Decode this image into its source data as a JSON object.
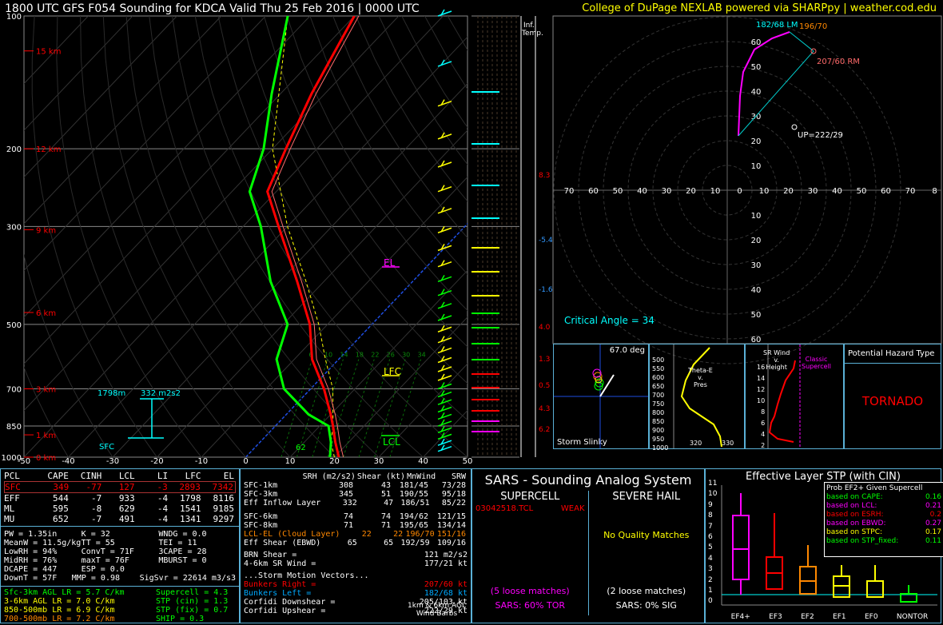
{
  "header": {
    "title": "1800 UTC GFS F054 Sounding for KDCA Valid  Thu 25 Feb 2016 | 0000 UTC",
    "credit": "College of DuPage NEXLAB powered via SHARPpy | weather.cod.edu"
  },
  "skewt": {
    "pressure_ticks": [
      "100",
      "200",
      "300",
      "500",
      "700",
      "850",
      "1000"
    ],
    "height_labels": [
      "15 km",
      "12 km",
      "9 km",
      "6 km",
      "3 km",
      "1 km",
      "0 km"
    ],
    "temp_ticks": [
      "-50",
      "-40",
      "-30",
      "-20",
      "-10",
      "0",
      "10",
      "20",
      "30",
      "40",
      "50"
    ],
    "el_label": "EL",
    "lfc_label": "LFC",
    "lcl_label": "LCL",
    "sfc_label": "SFC",
    "ehi_label": "1798m",
    "srh_label": "332 m2s2",
    "sfc_value": "62",
    "mixing_ratios": [
      "6",
      "10",
      "14",
      "18",
      "22",
      "26",
      "30",
      "34"
    ],
    "inf_temp_label": "Inf.\nTemp.",
    "inf_values": [
      "8.3",
      "-5.4",
      "-1.6",
      "4.0",
      "1.3",
      "0.5",
      "4.3",
      "6.2"
    ]
  },
  "hodograph": {
    "rings": [
      "10",
      "20",
      "30",
      "40",
      "50",
      "60"
    ],
    "axis_labels": [
      "70",
      "60",
      "50",
      "40",
      "30",
      "20",
      "10",
      "0",
      "10",
      "20",
      "30",
      "40",
      "50",
      "60",
      "70",
      "8"
    ],
    "top_left_label": "182/68 LM",
    "top_right_label": "196/70",
    "rm_label": "207/60 RM",
    "up_label": "UP=222/29",
    "critical_angle": "Critical Angle = 34"
  },
  "slinky": {
    "angle": "67.0 deg",
    "label": "Storm Slinky"
  },
  "theta": {
    "title": "Theta-E\nv.\nPres",
    "x_ticks": [
      "320",
      "330"
    ],
    "y_ticks": [
      "500",
      "550",
      "600",
      "650",
      "700",
      "750",
      "800",
      "850",
      "900",
      "950",
      "1000"
    ]
  },
  "srwind": {
    "title": "SR Wind\nv.\nHeight",
    "note": "Classic\nSupercell",
    "y_ticks": [
      "16",
      "14",
      "12",
      "10",
      "8",
      "6",
      "4",
      "2"
    ]
  },
  "hazard": {
    "title": "Potential Hazard Type",
    "value": "TORNADO"
  },
  "parcels": {
    "header": [
      "PCL",
      "CAPE",
      "CINH",
      "LCL",
      "LI",
      "LFC",
      "EL"
    ],
    "rows": [
      [
        "SFC",
        "349",
        "-77",
        "127",
        "-3",
        "2893",
        "7342"
      ],
      [
        "EFF",
        "544",
        "-7",
        "933",
        "-4",
        "1798",
        "8116"
      ],
      [
        "ML",
        "595",
        "-8",
        "629",
        "-4",
        "1541",
        "9185"
      ],
      [
        "MU",
        "652",
        "-7",
        "491",
        "-4",
        "1341",
        "9297"
      ]
    ]
  },
  "indices": [
    [
      "PW = 1.35in",
      "K = 32",
      "WNDG = 0.0"
    ],
    [
      "MeanW = 11.5g/kg",
      "TT = 55",
      "TEI = 11"
    ],
    [
      "LowRH = 94%",
      "ConvT = 71F",
      "3CAPE = 28"
    ],
    [
      "MidRH = 76%",
      "maxT = 76F",
      "MBURST = 0"
    ],
    [
      "DCAPE = 447",
      "ESP = 0.0",
      ""
    ],
    [
      "DownT = 57F",
      "MMP = 0.98",
      "SigSvr = 22614 m3/s3"
    ]
  ],
  "lapse": {
    "items": [
      "Sfc-3km AGL LR = 5.7 C/km",
      "3-6km AGL LR = 7.0 C/km",
      "850-500mb LR = 6.9 C/km",
      "700-500mb LR = 7.2 C/km"
    ],
    "composites": [
      "Supercell = 4.3",
      "STP (cin) = 1.3",
      "STP (fix) = 0.7",
      "SHIP = 0.3"
    ]
  },
  "kinematics": {
    "header": [
      "SRH (m2/s2)",
      "Shear (kt)",
      "MnWind",
      "SRW"
    ],
    "rows": [
      [
        "SFC-1km",
        "308",
        "43",
        "181/45",
        "73/28"
      ],
      [
        "SFC-3km",
        "345",
        "51",
        "190/55",
        "95/18"
      ],
      [
        "Eff Inflow Layer",
        "332",
        "47",
        "186/51",
        "85/22"
      ],
      [
        "",
        "",
        "",
        "",
        ""
      ],
      [
        "SFC-6km",
        "74",
        "74",
        "194/62",
        "121/15"
      ],
      [
        "SFC-8km",
        "71",
        "71",
        "195/65",
        "134/14"
      ],
      [
        "LCL-EL (Cloud Layer)",
        "22",
        "22",
        "196/70",
        "151/16"
      ],
      [
        "Eff Shear (EBWD)",
        "65",
        "65",
        "192/59",
        "109/16"
      ]
    ],
    "brn_shear": "BRN Shear =",
    "brn_shear_val": "121 m2/s2",
    "sr_wind": "4-6km SR Wind =",
    "sr_wind_val": "177/21 kt",
    "storm_motion": "...Storm Motion Vectors...",
    "motions": [
      [
        "Bunkers Right =",
        "207/60 kt"
      ],
      [
        "Bunkers Left =",
        "182/68 kt"
      ],
      [
        "Corfidi Downshear =",
        "205/103 kt"
      ],
      [
        "Corfidi Upshear =",
        "222/29 kt"
      ]
    ],
    "barb_label": "1km & 6km AGL\nWind Barbs"
  },
  "sars": {
    "title": "SARS - Sounding Analog System",
    "supercell": "SUPERCELL",
    "severe_hail": "SEVERE HAIL",
    "match": "03042518.TCL",
    "match_strength": "WEAK",
    "no_matches": "No Quality Matches",
    "loose_left": "(5 loose matches)",
    "loose_right": "(2 loose matches)",
    "tor": "SARS: 60% TOR",
    "sig": "SARS: 0% SIG"
  },
  "stp": {
    "title": "Effective Layer STP (with CIN)",
    "prob_title": "Prob EF2+ Given Supercell",
    "prob_rows": [
      [
        "based on CAPE:",
        "0.16"
      ],
      [
        "based on LCL:",
        "0.21"
      ],
      [
        "based on ESRH:",
        "0.2"
      ],
      [
        "based on EBWD:",
        "0.27"
      ],
      [
        "based on STPC:",
        "0.17"
      ],
      [
        "based on STP_fixed:",
        "0.11"
      ]
    ],
    "y_ticks": [
      "11",
      "10",
      "9",
      "8",
      "7",
      "6",
      "5",
      "4",
      "3",
      "2",
      "1",
      "0"
    ],
    "categories": [
      "EF4+",
      "EF3",
      "EF2",
      "EF1",
      "EF0",
      "NONTOR"
    ]
  },
  "colors": {
    "accent": "#5ab0d6",
    "temp": "#ff0000",
    "dew": "#00ff00",
    "yellow": "#ffff00",
    "magenta": "#ff00ff",
    "cyan": "#00ffff"
  },
  "chart_data": {
    "type": "line",
    "series": [
      {
        "name": "Temperature",
        "values": [
          [
            1000,
            20
          ],
          [
            850,
            17
          ],
          [
            700,
            10
          ],
          [
            500,
            -10
          ],
          [
            300,
            -30
          ],
          [
            200,
            -50
          ],
          [
            100,
            -70
          ]
        ]
      },
      {
        "name": "Dewpoint",
        "values": [
          [
            1000,
            18
          ],
          [
            850,
            15
          ],
          [
            700,
            5
          ],
          [
            500,
            -12
          ],
          [
            300,
            -35
          ],
          [
            200,
            -60
          ],
          [
            100,
            -80
          ]
        ]
      }
    ],
    "xlabel": "",
    "ylabel": "",
    "x_range": [
      -50,
      50
    ],
    "y_range": [
      1000,
      100
    ],
    "y_scale": "log",
    "grid": true
  }
}
